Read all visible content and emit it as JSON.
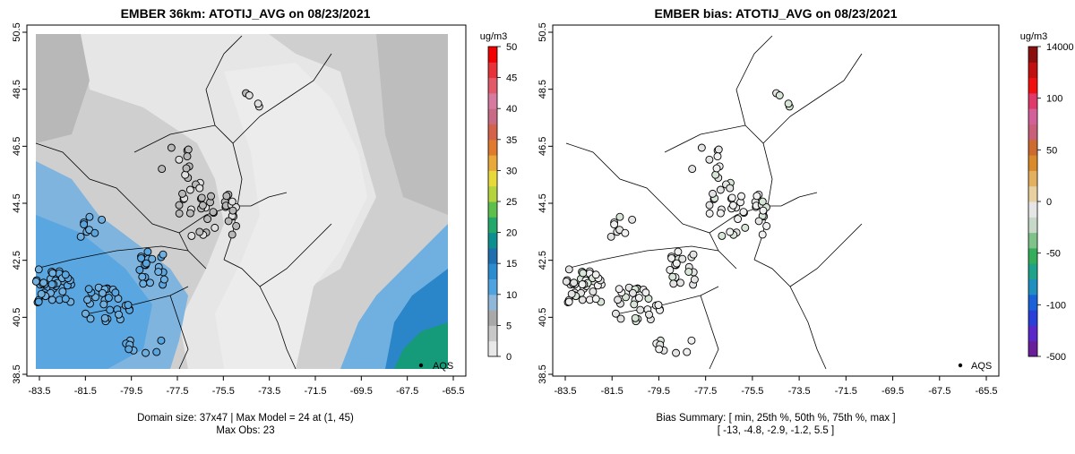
{
  "left_panel": {
    "title": "EMBER 36km: ATOTIJ_AVG on 08/23/2021",
    "legend_unit": "ug/m3",
    "legend_ticks": [
      "0",
      "5",
      "10",
      "15",
      "20",
      "25",
      "30",
      "35",
      "40",
      "45",
      "50"
    ],
    "legend_colors": [
      "#e8e8e8",
      "#c8c8c8",
      "#a9a9a9",
      "#8fb7d9",
      "#4fa3df",
      "#2b8ccf",
      "#1f6fae",
      "#0e8f8f",
      "#22a86a",
      "#5fbf4c",
      "#b5d33c",
      "#e8d93a",
      "#e9a93a",
      "#e07a2e",
      "#d4624a",
      "#c96a84",
      "#d77aa0",
      "#e25a6a",
      "#e8323a",
      "#f00000"
    ],
    "footer_line1": "Domain size: 37x47 | Max Model = 24 at (1, 45)",
    "footer_line2": "Max Obs: 23",
    "marker_label": "AQS"
  },
  "right_panel": {
    "title": "EMBER bias: ATOTIJ_AVG on 08/23/2021",
    "legend_unit": "ug/m3",
    "legend_ticks": [
      "-500",
      "-100",
      "-50",
      "0",
      "50",
      "100",
      "14000"
    ],
    "legend_colors": [
      "#6a1f9a",
      "#5a28c8",
      "#2a3ed8",
      "#1b62d8",
      "#1f8fbf",
      "#1ea38a",
      "#36ad5a",
      "#7fc28a",
      "#c8d8c8",
      "#e6e6e6",
      "#e8d0a0",
      "#e2b060",
      "#d98a2a",
      "#cc6a30",
      "#c8607a",
      "#d4609a",
      "#e03a6a",
      "#f01010",
      "#c01010",
      "#8a1010"
    ],
    "footer_line1": "Bias Summary: [ min, 25th %, 50th %, 75th %, max ]",
    "footer_line2": "[ -13,   -4.8,   -2.9,   -1.2,   5.5 ]",
    "marker_label": "AQS"
  },
  "axes": {
    "x_ticks": [
      "-83.5",
      "-81.5",
      "-79.5",
      "-77.5",
      "-75.5",
      "-73.5",
      "-71.5",
      "-69.5",
      "-67.5",
      "-65.5"
    ],
    "y_ticks": [
      "38.5",
      "40.5",
      "42.5",
      "44.5",
      "46.5",
      "48.5",
      "50.5"
    ]
  }
}
